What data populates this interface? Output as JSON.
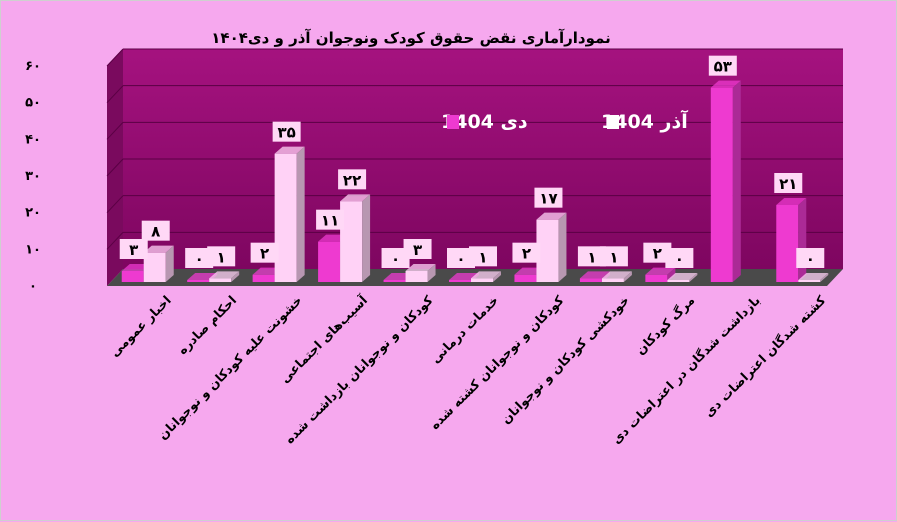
{
  "chart_data": {
    "type": "bar",
    "title": "نمودارآماری نقض حقوق کودک ونوجوان آذر و دی۱۴۰۴",
    "categories": [
      "اخبار عمومی",
      "احکام صادره",
      "خشونت علیه کودکان و نوجوانان",
      "آسیب‌های اجتماعی",
      "کودکان و نوجوانان بازداشت شده",
      "خدمات درمانی",
      "کودکان و نوجوانان کشته شده",
      "خودکشی کودکان و نوجوانان",
      "مرگ کودکان",
      "بازداشت شدگان در اعتراضات دی",
      "کشته شدگان اعتراضات دی"
    ],
    "series": [
      {
        "name": "دی 1404",
        "color": "#ee3ad0",
        "values": [
          3,
          0,
          2,
          11,
          0,
          0,
          2,
          1,
          2,
          53,
          21
        ]
      },
      {
        "name": "آذر 1404",
        "color": "#ffd2f6",
        "values": [
          8,
          1,
          35,
          22,
          3,
          1,
          17,
          1,
          0,
          null,
          0
        ]
      }
    ],
    "value_labels": [
      [
        "۳",
        "۰",
        "۲",
        "۱۱",
        "۰",
        "۰",
        "۲",
        "۱",
        "۲",
        "۵۳",
        "۲۱"
      ],
      [
        "۸",
        "۱",
        "۳۵",
        "۲۲",
        "۳",
        "۱",
        "۱۷",
        "۱",
        "۰",
        "",
        "۰"
      ]
    ],
    "yticks": [
      "۰",
      "۱۰",
      "۲۰",
      "۳۰",
      "۴۰",
      "۵۰",
      "۶۰"
    ],
    "ylim": [
      0,
      60
    ],
    "legend": [
      {
        "name": "آذر 1404",
        "color": "#ffffff"
      },
      {
        "name": "دی 1404",
        "color": "#ee3ad0"
      }
    ],
    "legend_position": "top-center",
    "grid": true,
    "background_color": "#f6a8ee",
    "plot_color": "#8e0a6e"
  }
}
